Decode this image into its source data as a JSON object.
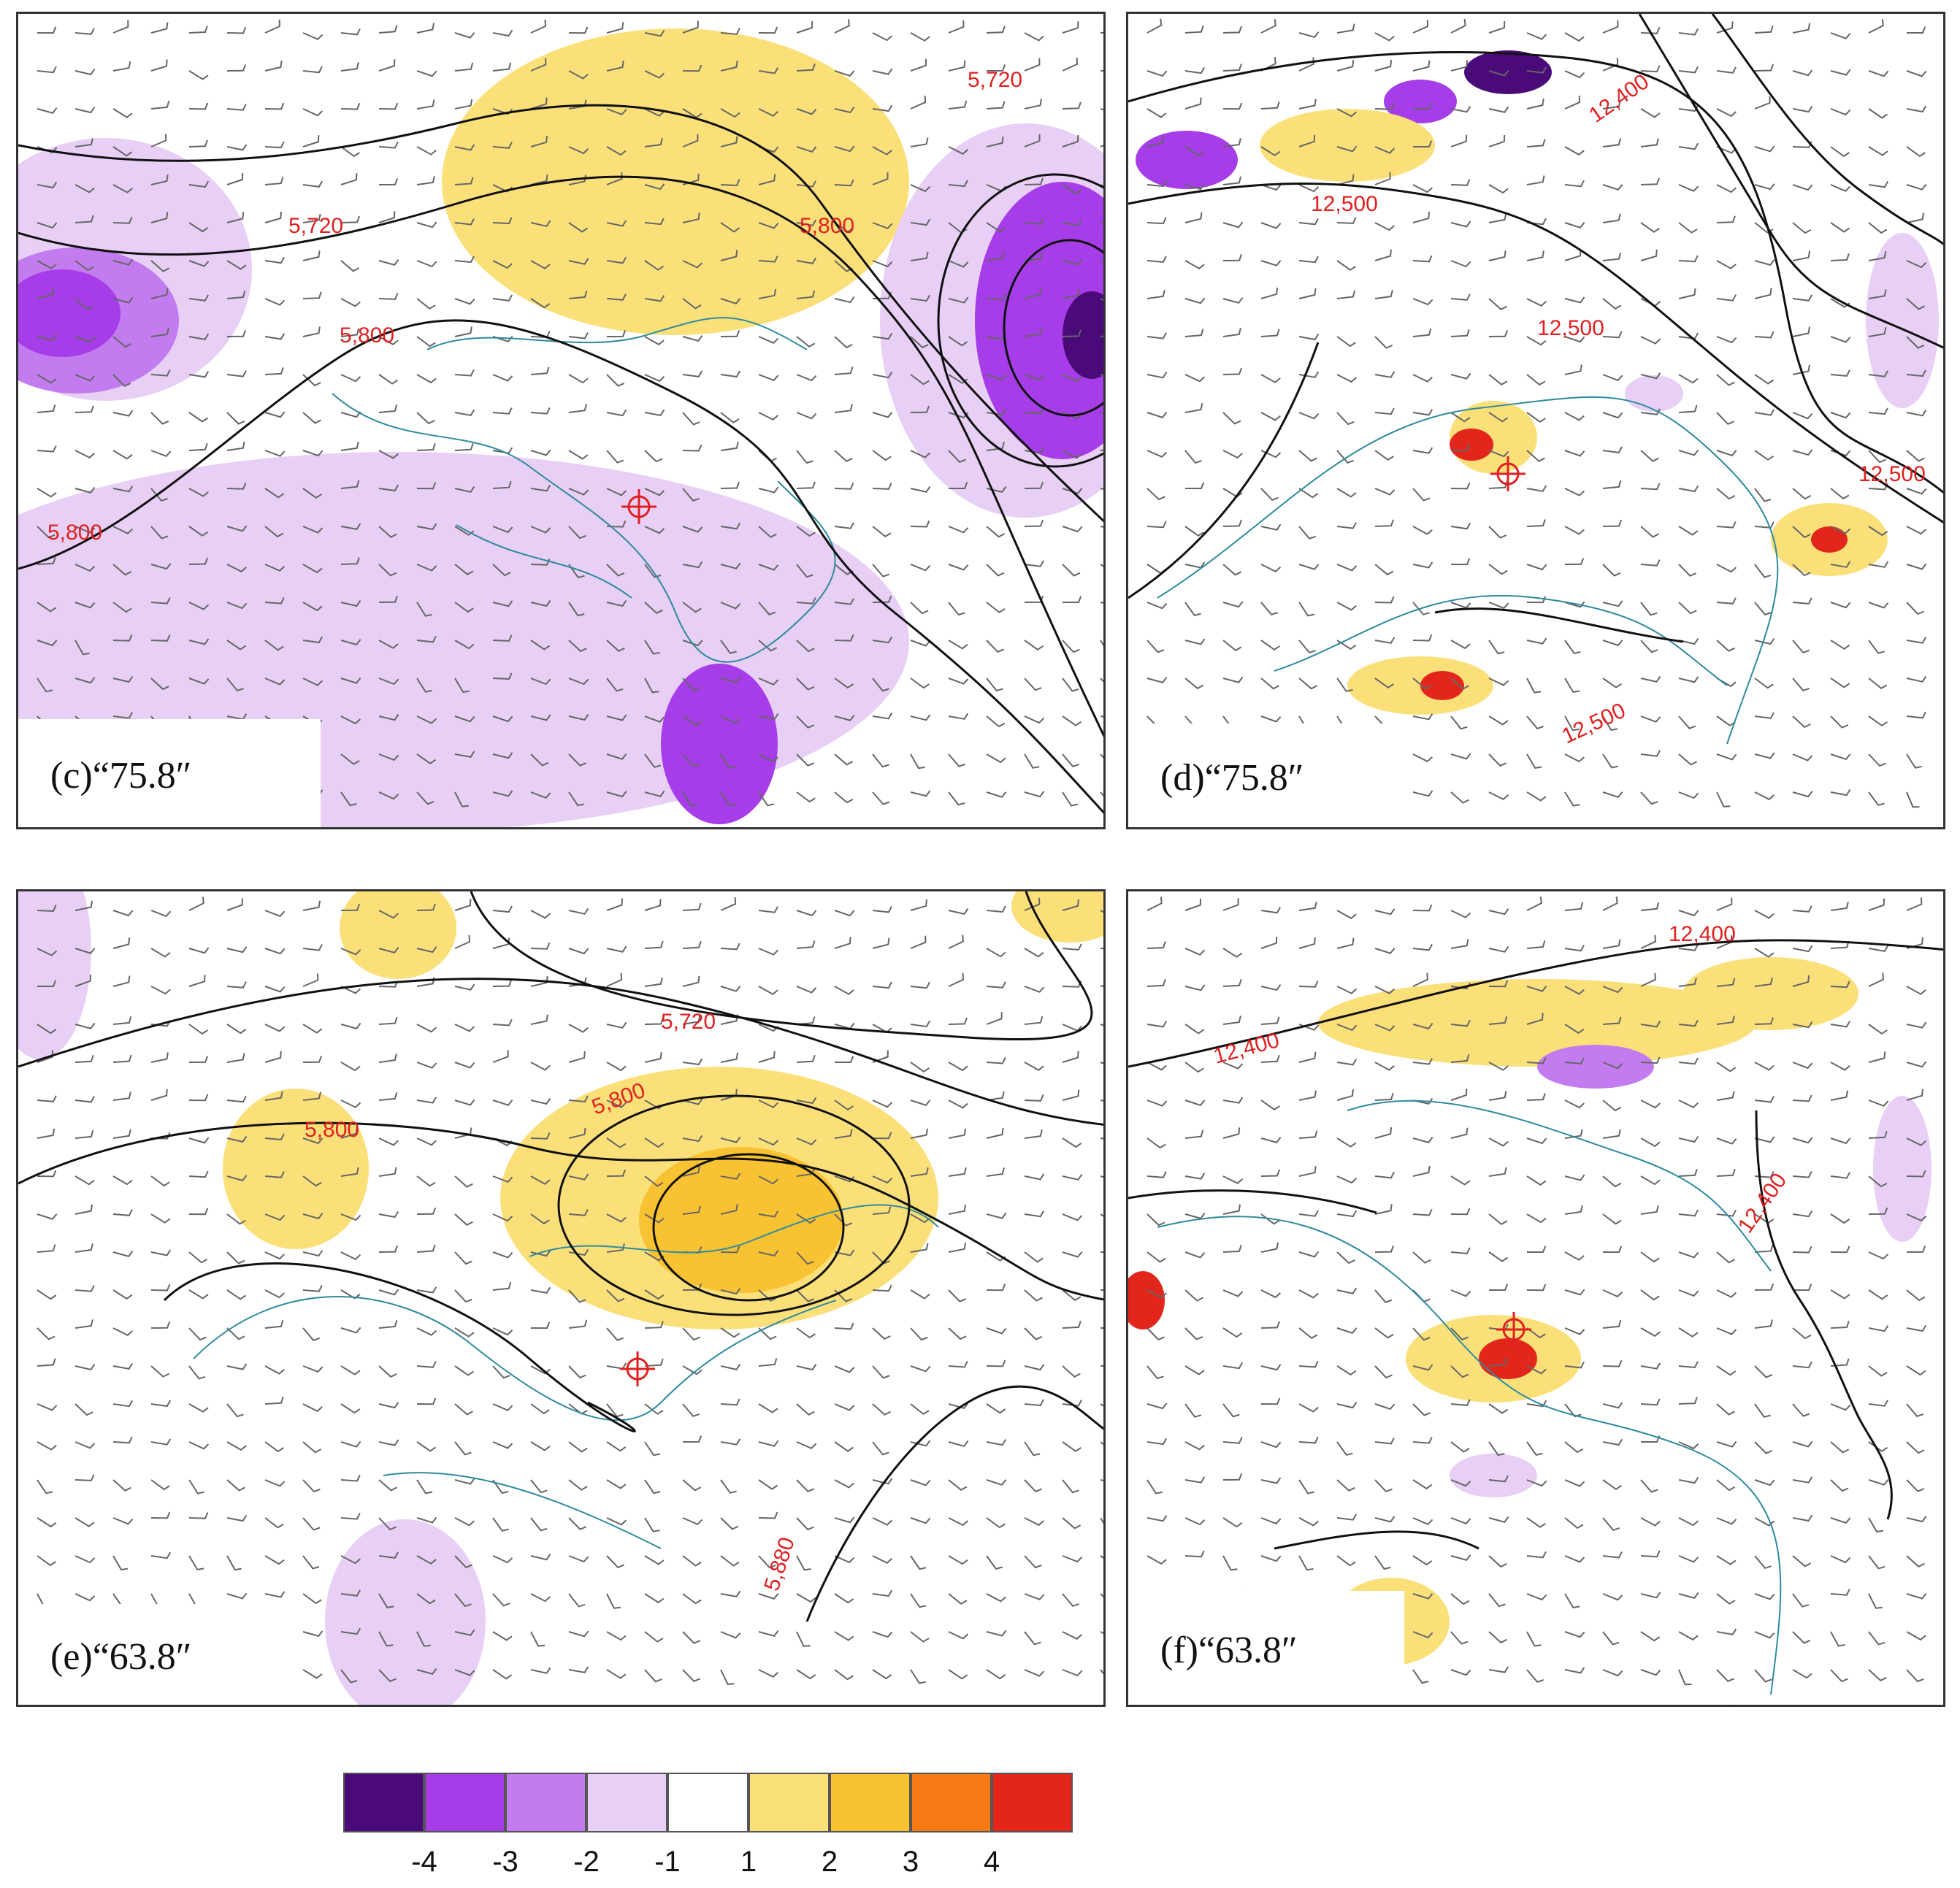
{
  "panels": [
    {
      "id": "c",
      "label": "(c)“75.8″",
      "contour_labels": [
        "5,720",
        "5,720",
        "5,800",
        "5,800",
        "5,800"
      ]
    },
    {
      "id": "d",
      "label": "(d)“75.8″",
      "contour_labels": [
        "12,400",
        "12,500",
        "12,500",
        "12,500",
        "12,500"
      ]
    },
    {
      "id": "e",
      "label": "(e)“63.8″",
      "contour_labels": [
        "5,720",
        "5,800",
        "5,800",
        "5,880"
      ]
    },
    {
      "id": "f",
      "label": "(f)“63.8″",
      "contour_labels": [
        "12,400",
        "12,400",
        "12,400"
      ]
    }
  ],
  "legend": {
    "colors": [
      "#4b0a7a",
      "#a63de8",
      "#c27cef",
      "#e7cff5",
      "#ffffff",
      "#fbe07a",
      "#f9c232",
      "#f77a14",
      "#e3261c"
    ],
    "ticks": [
      "-4",
      "-3",
      "-2",
      "-1",
      "1",
      "2",
      "3",
      "4"
    ]
  }
}
